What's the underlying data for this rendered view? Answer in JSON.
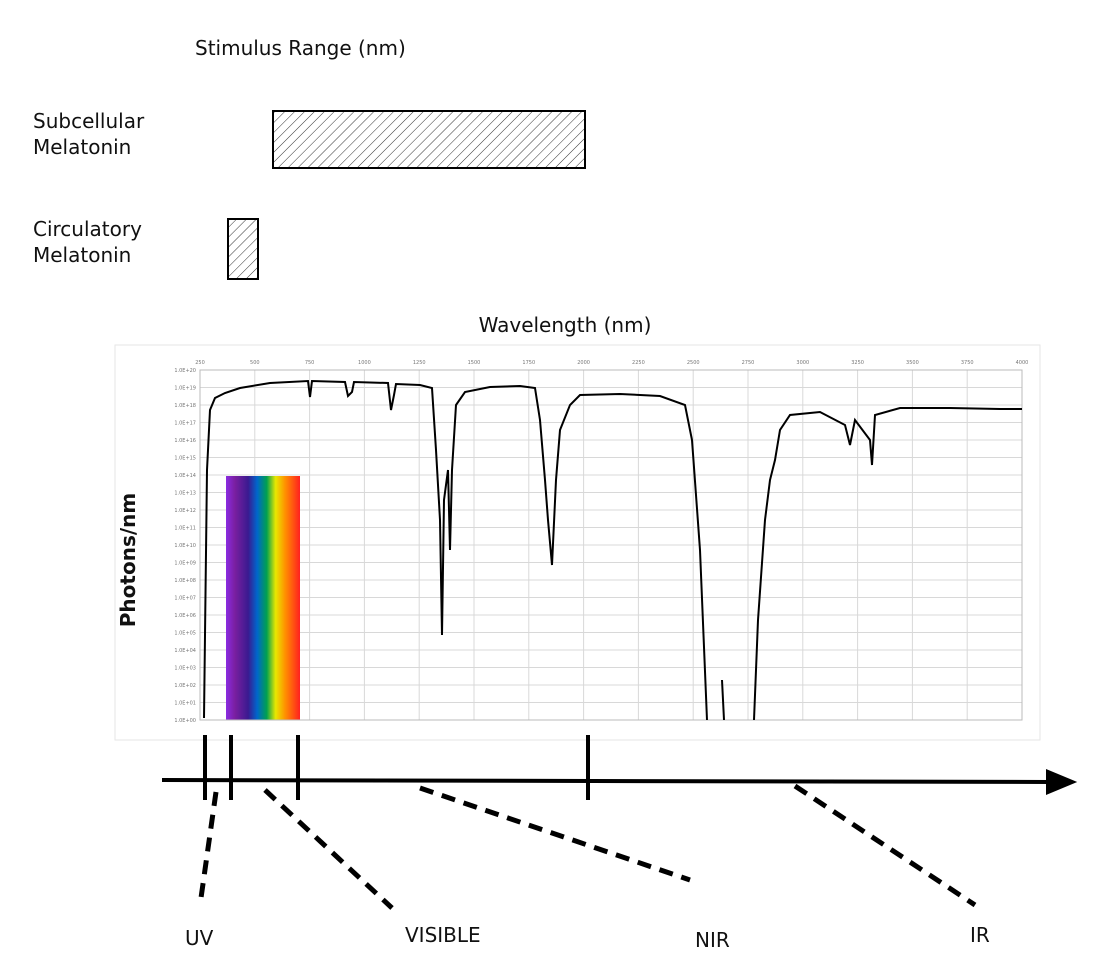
{
  "stimulus": {
    "title": "Stimulus Range (nm)",
    "subcellular": "Subcellular\nMelatonin",
    "circulatory": "Circulatory\nMelatonin"
  },
  "spectrum": {
    "title": "Wavelength (nm)",
    "ylabel": "Photons/nm",
    "xticks": [
      250,
      500,
      750,
      1000,
      1250,
      1500,
      1750,
      2000,
      2250,
      2500,
      2750,
      3000,
      3250,
      3500,
      3750,
      4000
    ],
    "yticks": [
      "1.0E+20",
      "1.0E+19",
      "1.0E+18",
      "1.0E+17",
      "1.0E+16",
      "1.0E+15",
      "1.0E+14",
      "1.0E+13",
      "1.0E+12",
      "1.0E+11",
      "1.0E+10",
      "1.0E+09",
      "1.0E+08",
      "1.0E+07",
      "1.0E+06",
      "1.0E+05",
      "1.0E+04",
      "1.0E+03",
      "1.0E+02",
      "1.0E+01",
      "1.0E+00"
    ]
  },
  "bands": {
    "uv": "UV",
    "visible": "VISIBLE",
    "nir": "NIR",
    "ir": "IR"
  }
}
